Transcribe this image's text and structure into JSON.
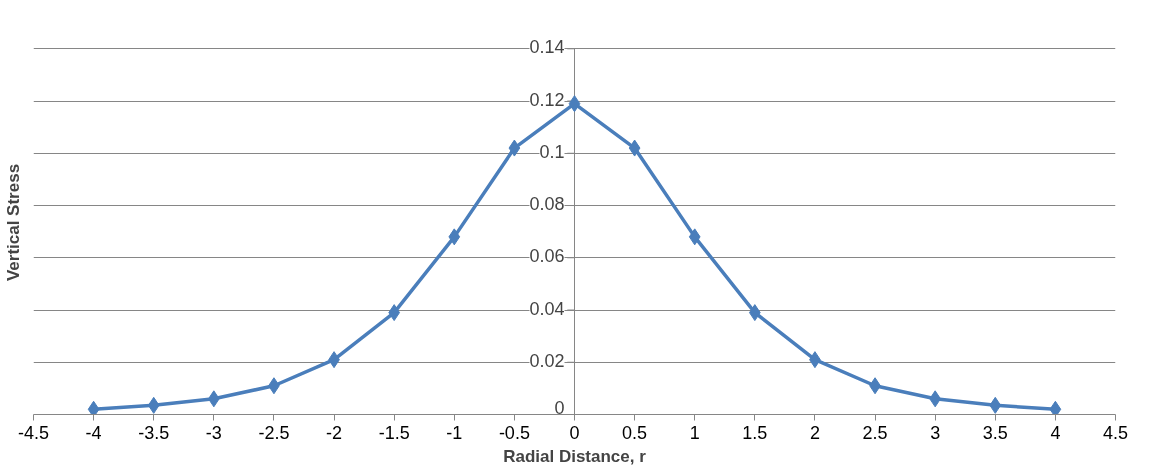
{
  "chart_data": {
    "type": "line",
    "xlabel": "Radial Distance, r",
    "ylabel": "Vertical Stress",
    "x": [
      -4,
      -3.5,
      -3,
      -2.5,
      -2,
      -1.5,
      -1,
      -0.5,
      0,
      0.5,
      1,
      1.5,
      2,
      2.5,
      3,
      3.5,
      4
    ],
    "series": [
      {
        "color": "#4a7ebb",
        "values": [
          0.002,
          0.0035,
          0.006,
          0.011,
          0.021,
          0.039,
          0.068,
          0.102,
          0.119,
          0.102,
          0.068,
          0.039,
          0.021,
          0.011,
          0.006,
          0.0035,
          0.002
        ]
      }
    ],
    "xlim": [
      -4.5,
      4.5
    ],
    "xticks": [
      -4.5,
      -4,
      -3.5,
      -3,
      -2.5,
      -2,
      -1.5,
      -1,
      -0.5,
      0,
      0.5,
      1,
      1.5,
      2,
      2.5,
      3,
      3.5,
      4,
      4.5
    ],
    "ylim": [
      0,
      0.14
    ],
    "yticks": [
      0,
      0.02,
      0.04,
      0.06,
      0.08,
      0.1,
      0.12,
      0.14
    ],
    "grid": "y",
    "marker": "diamond",
    "line_style": "solid"
  }
}
